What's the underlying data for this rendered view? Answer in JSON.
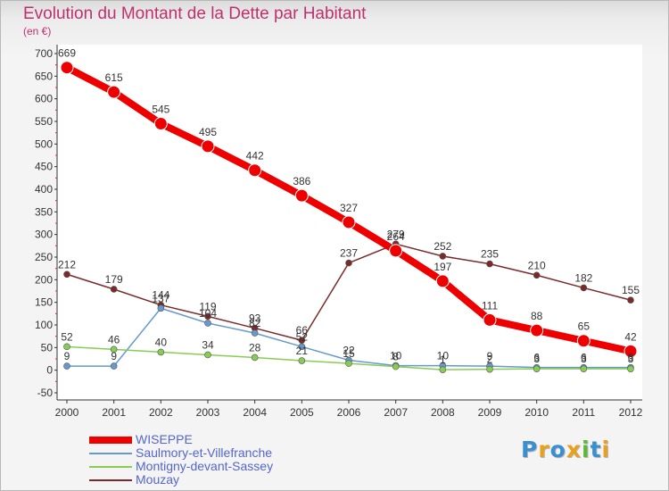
{
  "title": "Evolution du Montant de la Dette par Habitant",
  "subtitle": "(en €)",
  "logo": {
    "text": "Proxiti",
    "colors": [
      "#3a8fd0",
      "#e8a020",
      "#3a8fd0",
      "#e8a020",
      "#5cb83a",
      "#3a8fd0",
      "#e8a020"
    ]
  },
  "chart_data": {
    "type": "line",
    "title": "Evolution du Montant de la Dette par Habitant",
    "ylabel": "(en €)",
    "xlabel": "",
    "ylim": [
      -50,
      700
    ],
    "yticks": [
      -50,
      0,
      50,
      100,
      150,
      200,
      250,
      300,
      350,
      400,
      450,
      500,
      550,
      600,
      650,
      700
    ],
    "categories": [
      "2000",
      "2001",
      "2002",
      "2003",
      "2004",
      "2005",
      "2006",
      "2007",
      "2008",
      "2009",
      "2010",
      "2011",
      "2012"
    ],
    "grid": false,
    "legend_position": "bottom-left",
    "series": [
      {
        "name": "WISEPPE",
        "color": "#ee0000",
        "values": [
          669,
          615,
          545,
          495,
          442,
          386,
          327,
          264,
          197,
          111,
          88,
          65,
          42
        ],
        "labels": [
          "669",
          "615",
          "545",
          "495",
          "442",
          "386",
          "327",
          "264",
          "197",
          "111",
          "88",
          "65",
          "42"
        ]
      },
      {
        "name": "Saulmory-et-Villefranche",
        "color": "#6699cc",
        "values": [
          9,
          9,
          137,
          104,
          82,
          52,
          22,
          10,
          10,
          9,
          6,
          6,
          6
        ],
        "labels": [
          "9",
          "9",
          "137",
          "104",
          "82",
          "52",
          "22",
          "10",
          "10",
          "9",
          "6",
          "6",
          "6"
        ]
      },
      {
        "name": "Montigny-devant-Sassey",
        "color": "#88cc55",
        "values": [
          52,
          46,
          40,
          34,
          28,
          21,
          15,
          8,
          1,
          2,
          3,
          3,
          3
        ],
        "labels": [
          "52",
          "46",
          "40",
          "34",
          "28",
          "21",
          "15",
          "8",
          "1",
          "2",
          "3",
          "3",
          "3"
        ]
      },
      {
        "name": "Mouzay",
        "color": "#7a2a2a",
        "values": [
          212,
          179,
          144,
          119,
          93,
          66,
          237,
          279,
          252,
          235,
          210,
          182,
          155
        ],
        "labels": [
          "212",
          "179",
          "144",
          "119",
          "93",
          "66",
          "237",
          "279",
          "252",
          "235",
          "210",
          "182",
          "155"
        ]
      }
    ]
  }
}
